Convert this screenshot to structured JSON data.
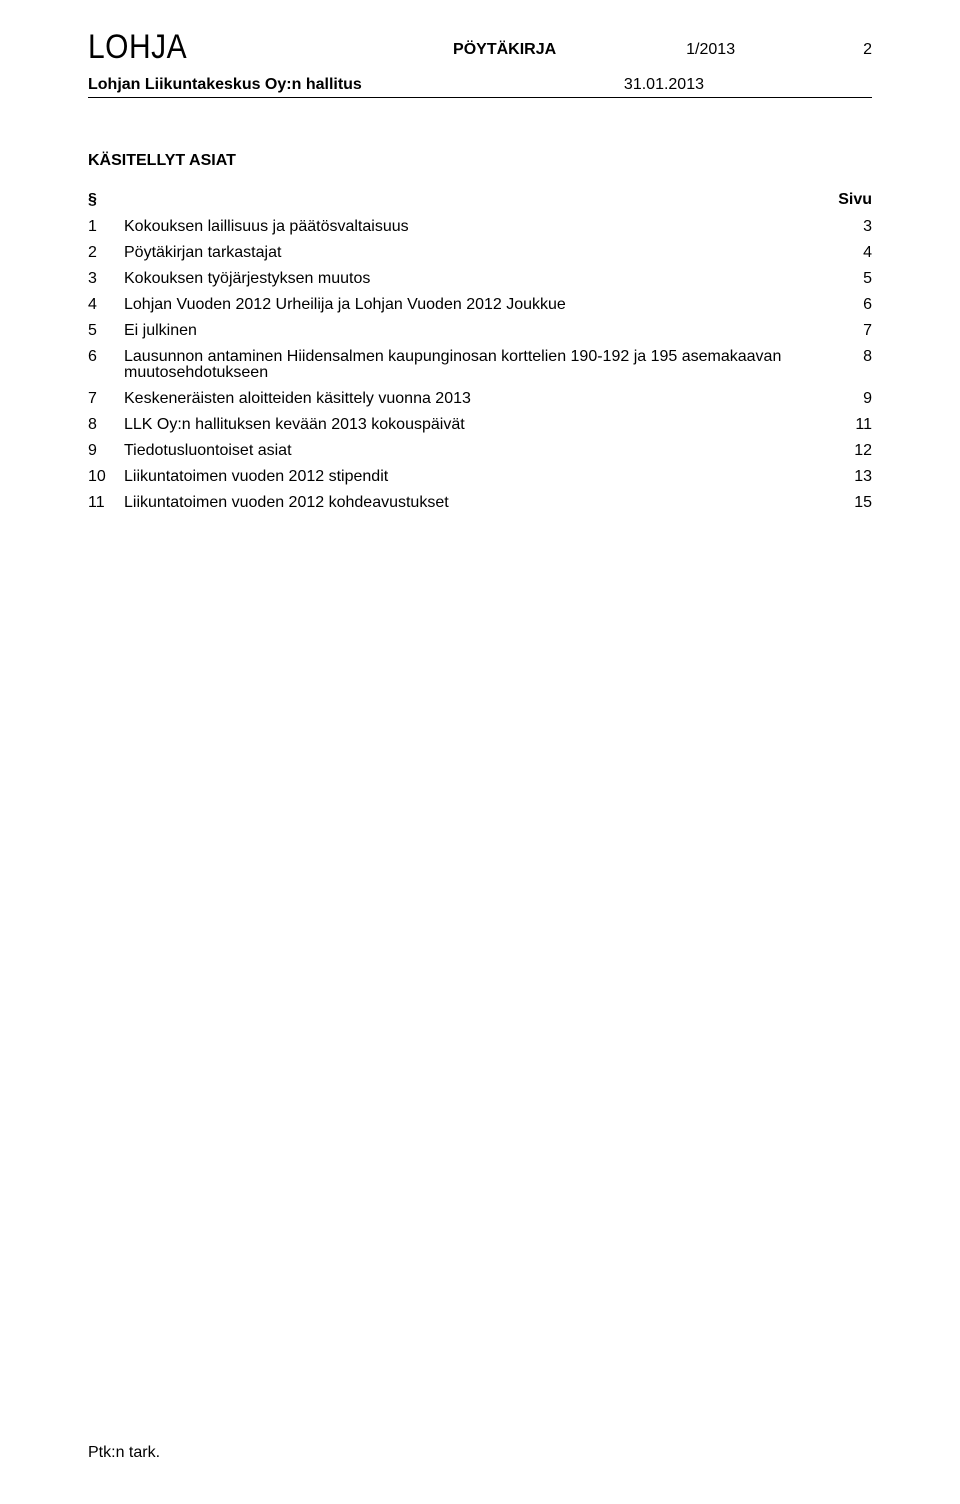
{
  "header": {
    "org": "LOHJA",
    "doc_type": "PÖYTÄKIRJA",
    "doc_number": "1/2013",
    "page_number": "2",
    "board": "Lohjan Liikuntakeskus Oy:n hallitus",
    "date": "31.01.2013"
  },
  "section_title": "KÄSITELLYT ASIAT",
  "toc": {
    "head_symbol": "§",
    "head_page": "Sivu",
    "items": [
      {
        "num": "1",
        "title": "Kokouksen laillisuus ja päätösvaltaisuus",
        "page": "3"
      },
      {
        "num": "2",
        "title": "Pöytäkirjan tarkastajat",
        "page": "4"
      },
      {
        "num": "3",
        "title": "Kokouksen työjärjestyksen muutos",
        "page": "5"
      },
      {
        "num": "4",
        "title": "Lohjan Vuoden 2012 Urheilija ja Lohjan Vuoden 2012 Joukkue",
        "page": "6"
      },
      {
        "num": "5",
        "title": "Ei julkinen",
        "page": "7"
      },
      {
        "num": "6",
        "title": "Lausunnon antaminen Hiidensalmen kaupunginosan korttelien 190-192 ja 195 asemakaavan muutosehdotukseen",
        "page": "8"
      },
      {
        "num": "7",
        "title": "Keskeneräisten aloitteiden käsittely vuonna 2013",
        "page": "9"
      },
      {
        "num": "8",
        "title": "LLK Oy:n hallituksen kevään 2013 kokouspäivät",
        "page": "11"
      },
      {
        "num": "9",
        "title": "Tiedotusluontoiset asiat",
        "page": "12"
      },
      {
        "num": "10",
        "title": "Liikuntatoimen vuoden 2012 stipendit",
        "page": "13"
      },
      {
        "num": "11",
        "title": "Liikuntatoimen vuoden 2012 kohdeavustukset",
        "page": "15"
      }
    ]
  },
  "footer": "Ptk:n tark.",
  "colors": {
    "text": "#000000",
    "background": "#ffffff",
    "rule": "#000000"
  },
  "fonts": {
    "body_size_pt": 12,
    "org_size_pt": 22,
    "family": "Arial"
  }
}
